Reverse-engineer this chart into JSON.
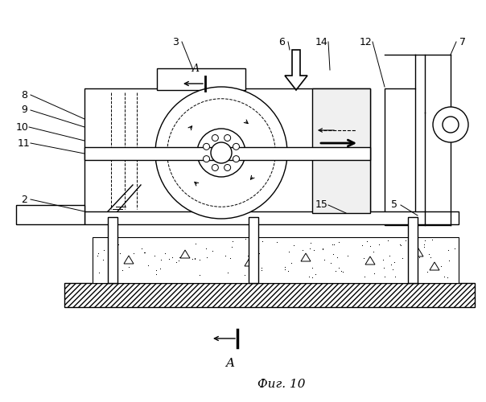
{
  "title": "Фиг. 10",
  "bg_color": "#ffffff",
  "line_color": "#000000",
  "fig_width": 6.04,
  "fig_height": 5.0,
  "dpi": 100
}
